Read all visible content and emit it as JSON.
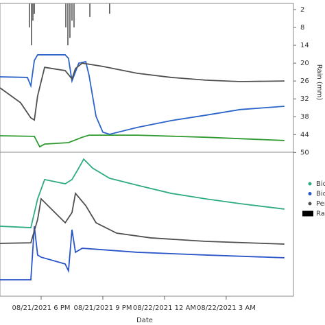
{
  "chart_data": [
    {
      "type": "line",
      "ylabel": "Rain (mm)",
      "ylim": [
        0,
        50
      ],
      "xlim": [
        16,
        30.27
      ],
      "yticks": [
        2,
        8,
        14,
        20,
        26,
        32,
        38,
        44,
        50
      ],
      "series": [
        {
          "color": "#2a63c9",
          "x": [
            16,
            17.33,
            17.5,
            17.67,
            17.83,
            19.17,
            19.33,
            19.5,
            19.83,
            20.17,
            20.33,
            20.67,
            21,
            21.33,
            22.67,
            24.33,
            26,
            27.67,
            29.83
          ],
          "values": [
            24.6,
            24.8,
            27.6,
            19.1,
            17.2,
            17.2,
            18.4,
            26,
            20,
            19.5,
            24.1,
            37.9,
            43.2,
            43.9,
            41.6,
            39.3,
            37.5,
            35.6,
            34.5
          ]
        },
        {
          "color": "#505050",
          "x": [
            16,
            17,
            17.5,
            17.67,
            17.83,
            18.17,
            19.17,
            19.5,
            19.67,
            20,
            21,
            22.67,
            24.33,
            26,
            27.67,
            29.83
          ],
          "values": [
            28.3,
            33.3,
            38.4,
            39.1,
            31,
            21.4,
            22.5,
            25.3,
            21.8,
            20,
            21.1,
            23.4,
            24.8,
            25.7,
            26.2,
            26
          ]
        },
        {
          "color": "#2f9a2f",
          "x": [
            16,
            17.67,
            17.93,
            18.17,
            19.33,
            20,
            20.33,
            22.67,
            26,
            29.83
          ],
          "values": [
            44.4,
            44.6,
            48.1,
            47.2,
            46.7,
            44.9,
            44.2,
            44.2,
            44.9,
            46
          ]
        },
        {
          "type": "bar",
          "name": "Rai",
          "color": "#000000",
          "x": [
            17.43,
            17.53,
            17.6,
            17.67,
            19.2,
            19.3,
            19.4,
            19.5,
            19.6,
            20.37,
            21.33
          ],
          "values": [
            8,
            14,
            5.7,
            3.4,
            8,
            14,
            11.5,
            5.7,
            8,
            4.5,
            3.4
          ]
        }
      ]
    },
    {
      "type": "line",
      "xlabel": "Date",
      "ylim": [
        0,
        100
      ],
      "xlim": [
        16,
        30.27
      ],
      "xticks": [
        {
          "value": 18,
          "label": "08/21/2021 6 PM"
        },
        {
          "value": 21,
          "label": "08/21/2021 9 PM"
        },
        {
          "value": 24,
          "label": "08/22/2021 12 AM"
        },
        {
          "value": 27,
          "label": "08/22/2021 3 AM"
        }
      ],
      "series": [
        {
          "name": "Bio",
          "color": "#2eab7f",
          "x": [
            16,
            17.5,
            17.83,
            18.17,
            19.17,
            19.5,
            19.83,
            20.07,
            20.5,
            21.33,
            22.67,
            24.33,
            26,
            27.67,
            29.83
          ],
          "values": [
            48.6,
            47.6,
            67.6,
            81,
            78.1,
            81,
            89,
            95.2,
            89,
            81.9,
            77.1,
            71.4,
            67.6,
            64.3,
            60.5
          ]
        },
        {
          "name": "Bio",
          "color": "#2a55c9",
          "x": [
            16,
            17.5,
            17.67,
            17.83,
            18,
            19.17,
            19.33,
            19.5,
            19.67,
            20,
            22.67,
            26,
            29.83
          ],
          "values": [
            11.4,
            11.4,
            48.6,
            28.6,
            27.1,
            22.4,
            17.6,
            46.2,
            30.5,
            33.3,
            30.5,
            28.6,
            26.7
          ]
        },
        {
          "name": "Per",
          "color": "#505050",
          "x": [
            16,
            17.5,
            17.83,
            18,
            18.33,
            19.17,
            19.5,
            19.67,
            20.17,
            20.67,
            21.67,
            23.33,
            26,
            29.83
          ],
          "values": [
            36.7,
            37.1,
            53.3,
            67.6,
            62.9,
            51,
            58.1,
            71.4,
            62.9,
            51,
            43.8,
            40.5,
            38.1,
            36.2
          ]
        }
      ]
    }
  ]
}
